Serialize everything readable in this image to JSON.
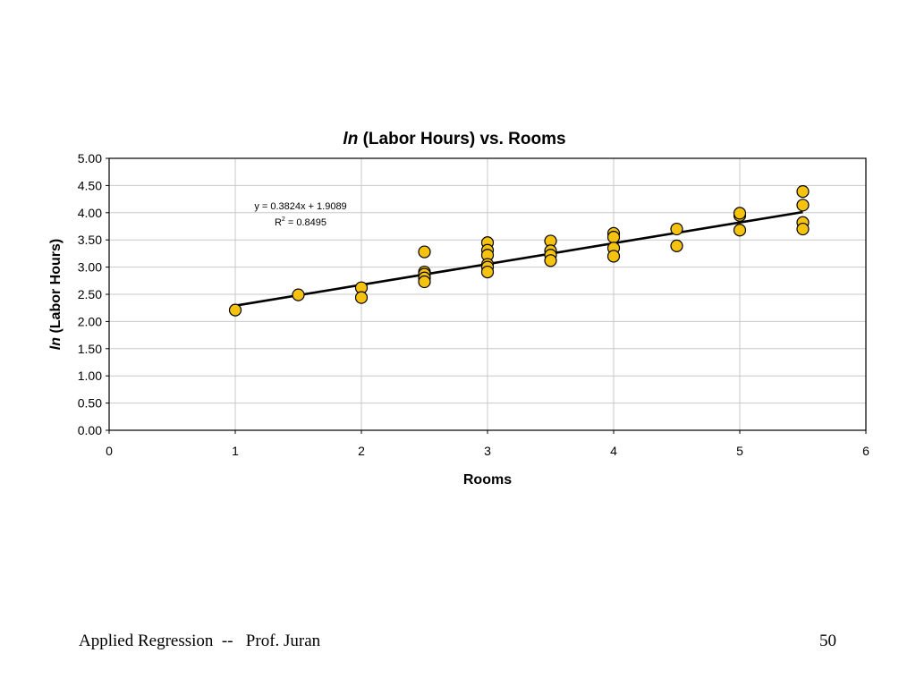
{
  "chart_data": {
    "type": "scatter",
    "title": {
      "italic": "ln",
      "rest": " (Labor Hours) vs. Rooms"
    },
    "xlabel": "Rooms",
    "ylabel": {
      "italic": "ln",
      "rest": " (Labor Hours)"
    },
    "xlim": [
      0,
      6
    ],
    "ylim": [
      0,
      5
    ],
    "xticks": [
      0,
      1,
      2,
      3,
      4,
      5,
      6
    ],
    "xtick_labels": [
      "0",
      "1",
      "2",
      "3",
      "4",
      "5",
      "6"
    ],
    "yticks": [
      0,
      0.5,
      1,
      1.5,
      2,
      2.5,
      3,
      3.5,
      4,
      4.5,
      5
    ],
    "ytick_labels": [
      "0.00",
      "0.50",
      "1.00",
      "1.50",
      "2.00",
      "2.50",
      "3.00",
      "3.50",
      "4.00",
      "4.50",
      "5.00"
    ],
    "grid": true,
    "marker_color": "#f5c30f",
    "points": [
      {
        "x": 1,
        "y": 2.21
      },
      {
        "x": 1.5,
        "y": 2.49
      },
      {
        "x": 2,
        "y": 2.62
      },
      {
        "x": 2,
        "y": 2.44
      },
      {
        "x": 2.5,
        "y": 3.28
      },
      {
        "x": 2.5,
        "y": 2.91
      },
      {
        "x": 2.5,
        "y": 2.87
      },
      {
        "x": 2.5,
        "y": 2.8
      },
      {
        "x": 2.5,
        "y": 2.73
      },
      {
        "x": 3,
        "y": 3.45
      },
      {
        "x": 3,
        "y": 3.31
      },
      {
        "x": 3,
        "y": 3.22
      },
      {
        "x": 3,
        "y": 3.05
      },
      {
        "x": 3,
        "y": 3.0
      },
      {
        "x": 3,
        "y": 2.91
      },
      {
        "x": 3.5,
        "y": 3.48
      },
      {
        "x": 3.5,
        "y": 3.3
      },
      {
        "x": 3.5,
        "y": 3.22
      },
      {
        "x": 3.5,
        "y": 3.12
      },
      {
        "x": 4,
        "y": 3.62
      },
      {
        "x": 4,
        "y": 3.55
      },
      {
        "x": 4,
        "y": 3.35
      },
      {
        "x": 4,
        "y": 3.2
      },
      {
        "x": 4.5,
        "y": 3.7
      },
      {
        "x": 4.5,
        "y": 3.39
      },
      {
        "x": 5,
        "y": 3.95
      },
      {
        "x": 5,
        "y": 3.99
      },
      {
        "x": 5,
        "y": 3.68
      },
      {
        "x": 5.5,
        "y": 4.39
      },
      {
        "x": 5.5,
        "y": 4.14
      },
      {
        "x": 5.5,
        "y": 3.82
      },
      {
        "x": 5.5,
        "y": 3.7
      }
    ],
    "trendline": {
      "slope": 0.3824,
      "intercept": 1.9089,
      "x_range": [
        1,
        5.5
      ]
    },
    "annotation": {
      "equation": "y = 0.3824x + 1.9089",
      "r2_label": "R",
      "r2_sup": "2",
      "r2_value": " = 0.8495"
    }
  },
  "footer": {
    "left": "Applied Regression  --   Prof. Juran",
    "page": "50"
  }
}
